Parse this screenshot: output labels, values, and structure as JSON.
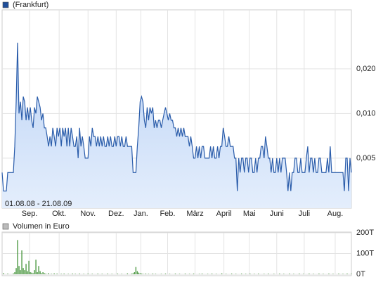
{
  "chart_data": [
    {
      "type": "area",
      "legend": "(Frankfurt)",
      "annotation": "01.08.08 - 21.08.09",
      "color": "#2a5caa",
      "yscale": "log",
      "grid": true,
      "xlim": [
        0,
        248
      ],
      "xticks": [
        {
          "value": 19.5,
          "label": "Sep."
        },
        {
          "value": 40.5,
          "label": "Okt."
        },
        {
          "value": 61,
          "label": "Nov."
        },
        {
          "value": 81,
          "label": "Dez."
        },
        {
          "value": 98.5,
          "label": "Jan."
        },
        {
          "value": 117.5,
          "label": "Feb."
        },
        {
          "value": 137,
          "label": "März"
        },
        {
          "value": 157.5,
          "label": "April"
        },
        {
          "value": 175.5,
          "label": "Mai"
        },
        {
          "value": 195,
          "label": "Juni"
        },
        {
          "value": 214.5,
          "label": "Juli"
        },
        {
          "value": 236.5,
          "label": "Aug."
        }
      ],
      "ylim": [
        0.0023,
        0.05
      ],
      "yticks": [
        {
          "value": 0.005,
          "label": "0,005"
        },
        {
          "value": 0.01,
          "label": "0,010"
        },
        {
          "value": 0.02,
          "label": "0,020"
        }
      ],
      "values": [
        0.004,
        0.003,
        0.003,
        0.003,
        0.004,
        0.004,
        0.004,
        0.004,
        0.004,
        0.006,
        0.012,
        0.03,
        0.01,
        0.012,
        0.009,
        0.013,
        0.012,
        0.009,
        0.011,
        0.009,
        0.011,
        0.009,
        0.008,
        0.011,
        0.01,
        0.013,
        0.012,
        0.011,
        0.009,
        0.01,
        0.008,
        0.008,
        0.007,
        0.006,
        0.007,
        0.006,
        0.008,
        0.007,
        0.006,
        0.008,
        0.007,
        0.008,
        0.006,
        0.008,
        0.007,
        0.008,
        0.006,
        0.008,
        0.006,
        0.008,
        0.007,
        0.006,
        0.006,
        0.007,
        0.005,
        0.008,
        0.006,
        0.007,
        0.006,
        0.005,
        0.005,
        0.005,
        0.007,
        0.006,
        0.008,
        0.007,
        0.007,
        0.006,
        0.007,
        0.006,
        0.007,
        0.006,
        0.007,
        0.006,
        0.006,
        0.007,
        0.006,
        0.007,
        0.006,
        0.006,
        0.007,
        0.006,
        0.007,
        0.007,
        0.006,
        0.007,
        0.006,
        0.006,
        0.007,
        0.006,
        0.006,
        0.006,
        0.006,
        0.004,
        0.004,
        0.004,
        0.006,
        0.008,
        0.012,
        0.013,
        0.012,
        0.009,
        0.008,
        0.011,
        0.009,
        0.011,
        0.01,
        0.011,
        0.008,
        0.009,
        0.008,
        0.009,
        0.009,
        0.008,
        0.009,
        0.01,
        0.011,
        0.01,
        0.009,
        0.01,
        0.009,
        0.009,
        0.008,
        0.008,
        0.007,
        0.008,
        0.007,
        0.008,
        0.007,
        0.008,
        0.007,
        0.007,
        0.007,
        0.006,
        0.007,
        0.006,
        0.005,
        0.005,
        0.006,
        0.005,
        0.006,
        0.005,
        0.006,
        0.006,
        0.005,
        0.005,
        0.005,
        0.005,
        0.006,
        0.005,
        0.006,
        0.005,
        0.005,
        0.006,
        0.005,
        0.006,
        0.006,
        0.008,
        0.007,
        0.006,
        0.006,
        0.007,
        0.006,
        0.006,
        0.006,
        0.005,
        0.005,
        0.003,
        0.005,
        0.004,
        0.005,
        0.005,
        0.004,
        0.005,
        0.005,
        0.004,
        0.005,
        0.005,
        0.004,
        0.004,
        0.005,
        0.004,
        0.005,
        0.005,
        0.006,
        0.006,
        0.005,
        0.007,
        0.006,
        0.005,
        0.005,
        0.004,
        0.005,
        0.004,
        0.004,
        0.005,
        0.004,
        0.005,
        0.004,
        0.005,
        0.005,
        0.005,
        0.004,
        0.003,
        0.004,
        0.003,
        0.004,
        0.004,
        0.005,
        0.005,
        0.004,
        0.004,
        0.005,
        0.004,
        0.004,
        0.004,
        0.005,
        0.006,
        0.004,
        0.005,
        0.005,
        0.004,
        0.005,
        0.004,
        0.004,
        0.005,
        0.005,
        0.004,
        0.004,
        0.004,
        0.004,
        0.005,
        0.004,
        0.006,
        0.004,
        0.004,
        0.004,
        0.004,
        0.004,
        0.004,
        0.004,
        0.004,
        0.004,
        0.003,
        0.005,
        0.005,
        0.003,
        0.005,
        0.004
      ]
    },
    {
      "type": "bar",
      "legend": "Volumen in Euro",
      "color": "#4f9a45",
      "grid": true,
      "xlim": [
        0,
        248
      ],
      "ylim": [
        0,
        200000
      ],
      "yticks": [
        {
          "value": 0,
          "label": "0T"
        },
        {
          "value": 100000,
          "label": "100T"
        },
        {
          "value": 200000,
          "label": "200T"
        }
      ],
      "values": [
        0,
        5000,
        0,
        0,
        3000,
        0,
        0,
        0,
        4000,
        10000,
        30000,
        165000,
        40000,
        20000,
        115000,
        30000,
        20000,
        50000,
        15000,
        65000,
        10000,
        8000,
        5000,
        20000,
        70000,
        10000,
        40000,
        15000,
        5000,
        10000,
        5000,
        3000,
        0,
        5000,
        0,
        2000,
        0,
        4000,
        0,
        3000,
        0,
        0,
        2000,
        0,
        3000,
        0,
        0,
        2000,
        0,
        0,
        3000,
        0,
        2000,
        0,
        0,
        3000,
        0,
        0,
        2000,
        0,
        0,
        3000,
        0,
        0,
        2000,
        0,
        0,
        0,
        3000,
        0,
        0,
        2000,
        0,
        0,
        0,
        3000,
        0,
        0,
        2000,
        0,
        0,
        0,
        3000,
        0,
        0,
        2000,
        0,
        0,
        0,
        4000,
        0,
        0,
        3000,
        5000,
        10000,
        35000,
        15000,
        8000,
        5000,
        3000,
        2000,
        0,
        3000,
        0,
        2000,
        0,
        0,
        3000,
        0,
        2000,
        0,
        0,
        0,
        2000,
        0,
        0,
        3000,
        0,
        0,
        2000,
        0,
        0,
        0,
        3000,
        0,
        0,
        2000,
        0,
        0,
        0,
        3000,
        0,
        0,
        2000,
        0,
        0,
        3000,
        0,
        0,
        0,
        2000,
        0,
        3000,
        0,
        0,
        0,
        2000,
        0,
        0,
        3000,
        0,
        0,
        2000,
        0,
        0,
        0,
        4000,
        0,
        0,
        2000,
        0,
        0,
        0,
        3000,
        0,
        0,
        2000,
        0,
        0,
        0,
        3000,
        0,
        0,
        2000,
        0,
        0,
        3000,
        0,
        0,
        2000,
        0,
        0,
        3000,
        0,
        0,
        0,
        2000,
        0,
        0,
        3000,
        0,
        0,
        0,
        2000,
        0,
        0,
        0,
        3000,
        0,
        0,
        2000,
        0,
        0,
        0,
        3000,
        0,
        0,
        2000,
        0,
        0,
        0,
        3000,
        0,
        0,
        2000,
        0,
        0,
        0,
        3000,
        0,
        0,
        2000,
        0,
        0,
        0,
        3000,
        0,
        0,
        2000,
        0,
        0,
        0,
        3000,
        0,
        0,
        2000,
        0,
        0,
        0,
        3000,
        0,
        0,
        2000,
        0,
        0,
        3000,
        0,
        0,
        2000
      ]
    }
  ]
}
